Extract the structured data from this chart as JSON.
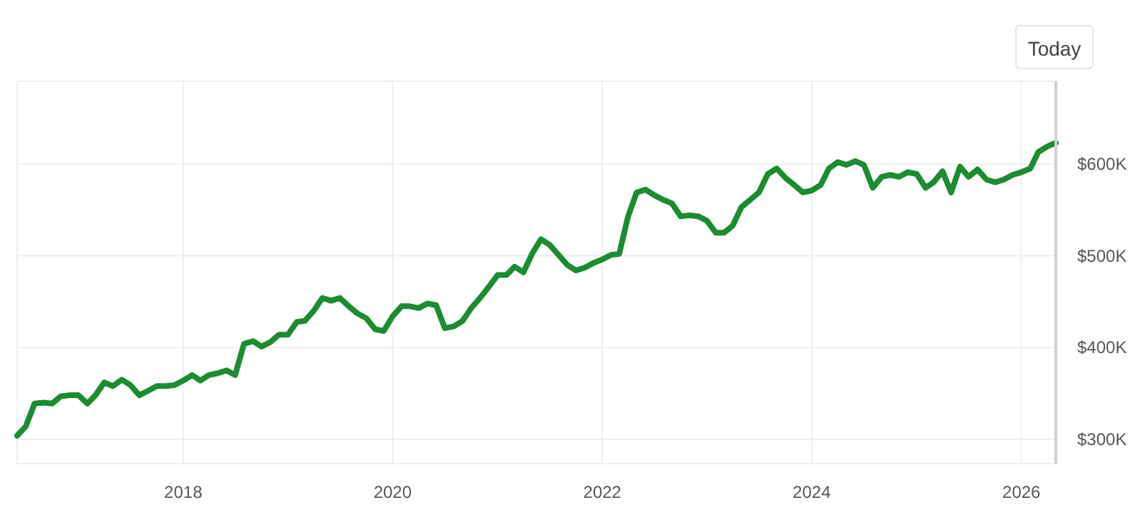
{
  "chart_data": {
    "type": "line",
    "x": [
      "2016-06",
      "2016-07",
      "2016-08",
      "2016-09",
      "2016-10",
      "2016-11",
      "2016-12",
      "2017-01",
      "2017-02",
      "2017-03",
      "2017-04",
      "2017-05",
      "2017-06",
      "2017-07",
      "2017-08",
      "2017-09",
      "2017-10",
      "2017-11",
      "2017-12",
      "2018-01",
      "2018-02",
      "2018-03",
      "2018-04",
      "2018-05",
      "2018-06",
      "2018-07",
      "2018-08",
      "2018-09",
      "2018-10",
      "2018-11",
      "2018-12",
      "2019-01",
      "2019-02",
      "2019-03",
      "2019-04",
      "2019-05",
      "2019-06",
      "2019-07",
      "2019-08",
      "2019-09",
      "2019-10",
      "2019-11",
      "2019-12",
      "2020-01",
      "2020-02",
      "2020-03",
      "2020-04",
      "2020-05",
      "2020-06",
      "2020-07",
      "2020-08",
      "2020-09",
      "2020-10",
      "2020-11",
      "2020-12",
      "2021-01",
      "2021-02",
      "2021-03",
      "2021-04",
      "2021-05",
      "2021-06",
      "2021-07",
      "2021-08",
      "2021-09",
      "2021-10",
      "2021-11",
      "2021-12",
      "2022-01",
      "2022-02",
      "2022-03",
      "2022-04",
      "2022-05",
      "2022-06",
      "2022-07",
      "2022-08",
      "2022-09",
      "2022-10",
      "2022-11",
      "2022-12",
      "2023-01",
      "2023-02",
      "2023-03",
      "2023-04",
      "2023-05",
      "2023-06",
      "2023-07",
      "2023-08",
      "2023-09",
      "2023-10",
      "2023-11",
      "2023-12",
      "2024-01",
      "2024-02",
      "2024-03",
      "2024-04",
      "2024-05",
      "2024-06",
      "2024-07",
      "2024-08",
      "2024-09",
      "2024-10",
      "2024-11",
      "2024-12",
      "2025-01",
      "2025-02",
      "2025-03",
      "2025-04",
      "2025-05",
      "2025-06",
      "2025-07",
      "2025-08",
      "2025-09",
      "2025-10",
      "2025-11",
      "2025-12",
      "2026-01",
      "2026-02",
      "2026-03",
      "2026-04",
      "2026-05"
    ],
    "series": [
      {
        "color": "#1b8c30",
        "values": [
          304000,
          314000,
          339000,
          340000,
          339000,
          347000,
          348000,
          348000,
          339000,
          348000,
          362000,
          358000,
          365000,
          359000,
          348000,
          353000,
          358000,
          358000,
          359000,
          364000,
          370000,
          364000,
          370000,
          372000,
          375000,
          370000,
          404000,
          407000,
          401000,
          406000,
          414000,
          414000,
          428000,
          429000,
          440000,
          454000,
          451000,
          454000,
          445000,
          437000,
          432000,
          420000,
          418000,
          434000,
          445000,
          445000,
          443000,
          448000,
          446000,
          421000,
          423000,
          429000,
          443000,
          454000,
          466000,
          479000,
          479000,
          488000,
          482000,
          502000,
          518000,
          512000,
          501000,
          490000,
          484000,
          487000,
          492000,
          496000,
          501000,
          502000,
          543000,
          569000,
          572000,
          566000,
          561000,
          557000,
          543000,
          544000,
          543000,
          538000,
          525000,
          525000,
          533000,
          553000,
          561000,
          569000,
          589000,
          595000,
          585000,
          577000,
          569000,
          571000,
          577000,
          595000,
          602000,
          599000,
          603000,
          599000,
          574000,
          586000,
          588000,
          586000,
          591000,
          589000,
          574000,
          580000,
          592000,
          569000,
          597000,
          586000,
          594000,
          583000,
          580000,
          583000,
          588000,
          591000,
          595000,
          613000,
          619000,
          623000
        ]
      }
    ],
    "xlim": [
      "2016-06",
      "2026-05"
    ],
    "xticks": [
      {
        "value": "2018-01",
        "label": "2018"
      },
      {
        "value": "2020-01",
        "label": "2020"
      },
      {
        "value": "2022-01",
        "label": "2022"
      },
      {
        "value": "2024-01",
        "label": "2024"
      },
      {
        "value": "2026-01",
        "label": "2026"
      }
    ],
    "ylim": [
      273500,
      690000
    ],
    "yticks": [
      {
        "value": 300000,
        "label": "$300K"
      },
      {
        "value": 400000,
        "label": "$400K"
      },
      {
        "value": 500000,
        "label": "$500K"
      },
      {
        "value": 600000,
        "label": "$600K"
      }
    ],
    "annotations": [
      "Today"
    ],
    "grid": true,
    "marker": "none",
    "line_style": "solid"
  }
}
